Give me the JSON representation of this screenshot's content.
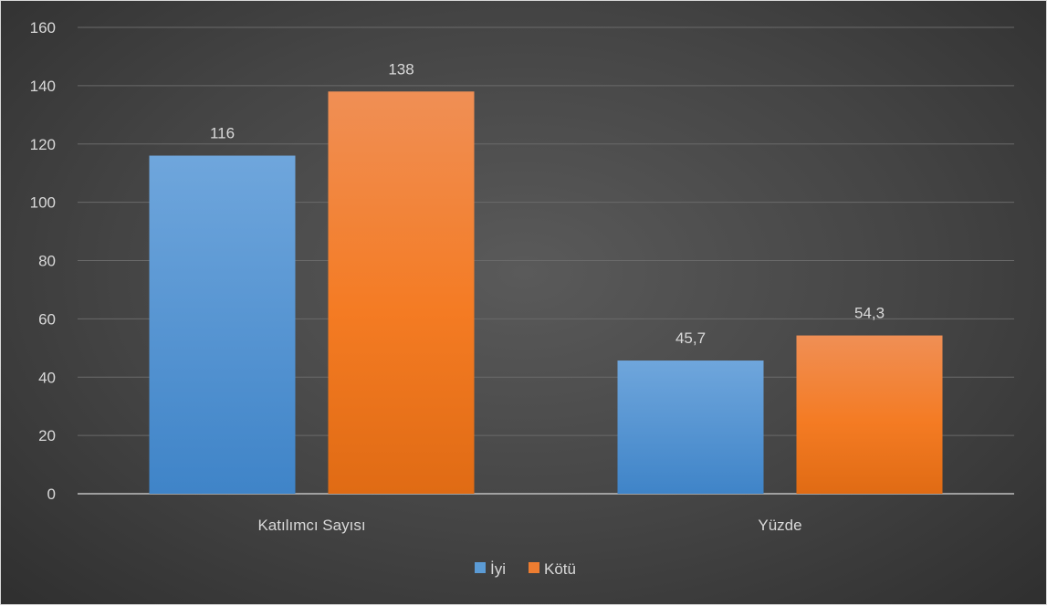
{
  "chart_data": {
    "type": "bar",
    "categories": [
      "Katılımcı Sayısı",
      "Yüzde"
    ],
    "series": [
      {
        "name": "İyi",
        "values": [
          116,
          45.7
        ],
        "value_labels": [
          "116",
          "45,7"
        ],
        "color": "#5b9bd5"
      },
      {
        "name": "Kötü",
        "values": [
          138,
          54.3
        ],
        "value_labels": [
          "138",
          "54,3"
        ],
        "color": "#ed7d31"
      }
    ],
    "ylim": [
      0,
      160
    ],
    "yticks": [
      0,
      20,
      40,
      60,
      80,
      100,
      120,
      140,
      160
    ],
    "grid": true,
    "legend": "bottom",
    "background": "#444444",
    "text_color": "#d9d9d9"
  }
}
